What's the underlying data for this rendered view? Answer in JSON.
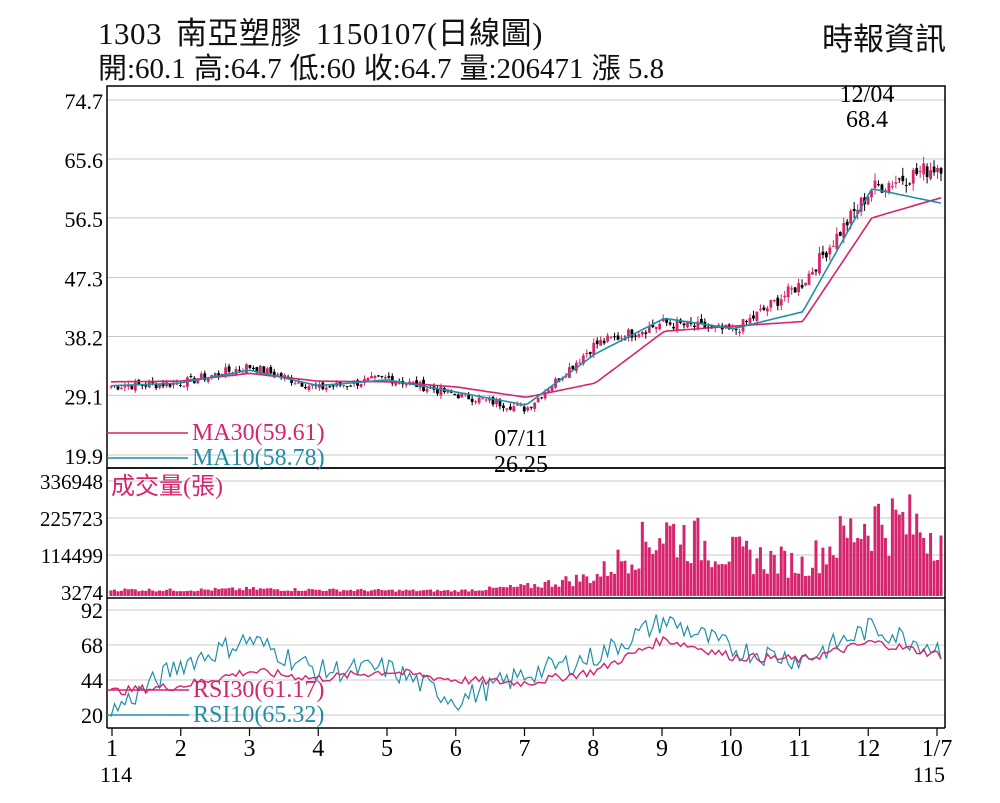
{
  "header": {
    "code": "1303",
    "name": "南亞塑膠",
    "date_label": "1150107(日線圖)",
    "source": "時報資訊",
    "stats": [
      "開:60.1",
      "高:64.7",
      "低:60",
      "收:64.7",
      "量:206471",
      "漲 5.8"
    ]
  },
  "chart_data": [
    {
      "type": "candlestick",
      "panel": "price",
      "y_ticks": [
        "74.7",
        "65.6",
        "56.5",
        "47.3",
        "38.2",
        "29.1",
        "19.9"
      ],
      "ylim": [
        19.9,
        74.7
      ],
      "x_ticks": [
        "1",
        "2",
        "3",
        "4",
        "5",
        "6",
        "7",
        "8",
        "9",
        "10",
        "11",
        "12",
        "1/7"
      ],
      "x_year_labels": [
        "114",
        "115"
      ],
      "annotations": [
        {
          "date": "12/04",
          "value": "68.4",
          "kind": "high"
        },
        {
          "date": "07/11",
          "value": "26.25",
          "kind": "low"
        }
      ],
      "legend": [
        {
          "label": "MA30(59.61)",
          "color": "#d6246e"
        },
        {
          "label": "MA10(58.78)",
          "color": "#1f8fa8"
        }
      ],
      "monthly_close": [
        {
          "month": "1",
          "close": 30.5
        },
        {
          "month": "2",
          "close": 31.0
        },
        {
          "month": "3",
          "close": 33.6
        },
        {
          "month": "4",
          "close": 30.2
        },
        {
          "month": "5",
          "close": 31.8
        },
        {
          "month": "6",
          "close": 29.2
        },
        {
          "month": "7",
          "close": 27.0
        },
        {
          "month": "8",
          "close": 37.0
        },
        {
          "month": "9",
          "close": 40.3
        },
        {
          "month": "10",
          "close": 39.0
        },
        {
          "month": "11",
          "close": 46.5
        },
        {
          "month": "12",
          "close": 61.0
        },
        {
          "month": "1/7",
          "close": 64.7
        }
      ],
      "ma30": [
        31.2,
        31.3,
        32.5,
        31.3,
        31.2,
        30.4,
        28.8,
        31.0,
        39.0,
        39.8,
        40.5,
        56.5,
        59.61
      ],
      "ma10": [
        30.6,
        31.0,
        33.0,
        30.6,
        31.5,
        29.6,
        27.6,
        35.5,
        41.0,
        39.4,
        42.0,
        61.0,
        58.78
      ]
    },
    {
      "type": "bar",
      "panel": "volume",
      "title": "成交量(張)",
      "y_ticks": [
        "336948",
        "225723",
        "114499",
        "3274"
      ],
      "ylim": [
        3274,
        336948
      ],
      "values": [
        12000,
        10000,
        14000,
        11000,
        9000,
        8000,
        22000,
        55000,
        210000,
        130000,
        95000,
        250000,
        206471
      ]
    },
    {
      "type": "line",
      "panel": "rsi",
      "y_ticks": [
        "92",
        "68",
        "44",
        "20"
      ],
      "ylim": [
        15,
        95
      ],
      "legend": [
        {
          "label": "RSI30(61.17)",
          "color": "#d6246e"
        },
        {
          "label": "RSI10(65.32)",
          "color": "#1f8fa8"
        }
      ],
      "rsi30": [
        36,
        40,
        50,
        45,
        50,
        44,
        42,
        50,
        72,
        60,
        58,
        70,
        61.17
      ],
      "rsi10": [
        22,
        55,
        72,
        50,
        52,
        30,
        48,
        60,
        85,
        65,
        58,
        80,
        65.32
      ]
    }
  ]
}
